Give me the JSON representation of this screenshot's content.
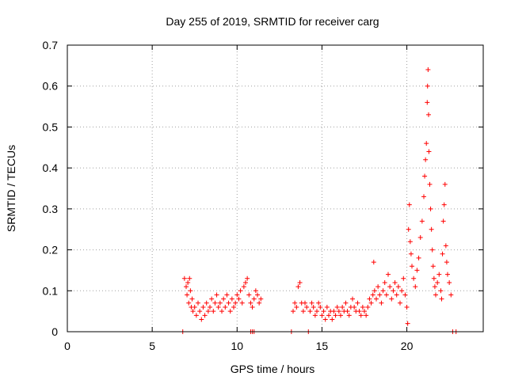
{
  "chart_data": {
    "type": "scatter",
    "title": "Day 255 of 2019, SRMTID for receiver carg",
    "xlabel": "GPS time / hours",
    "ylabel": "SRMTID / TECUs",
    "xlim": [
      0,
      24.5
    ],
    "ylim": [
      0,
      0.7
    ],
    "x_ticks": [
      0,
      5,
      10,
      15,
      20
    ],
    "x_tick_labels": [
      "0",
      "5",
      "10",
      "15",
      "20"
    ],
    "y_ticks": [
      0,
      0.1,
      0.2,
      0.3,
      0.4,
      0.5,
      0.6,
      0.7
    ],
    "y_tick_labels": [
      "0",
      "0.1",
      "0.2",
      "0.3",
      "0.4",
      "0.5",
      "0.6",
      "0.7"
    ],
    "grid": true,
    "marker": "+",
    "color": "#ff0000",
    "series": [
      {
        "name": "SRMTID",
        "points": [
          [
            6.8,
            0.0
          ],
          [
            10.8,
            0.0
          ],
          [
            10.9,
            0.0
          ],
          [
            11.0,
            0.0
          ],
          [
            13.2,
            0.0
          ],
          [
            14.2,
            0.0
          ],
          [
            22.7,
            0.0
          ],
          [
            22.9,
            0.0
          ],
          [
            6.9,
            0.13
          ],
          [
            7.0,
            0.11
          ],
          [
            7.05,
            0.09
          ],
          [
            7.1,
            0.12
          ],
          [
            7.15,
            0.07
          ],
          [
            7.2,
            0.13
          ],
          [
            7.25,
            0.1
          ],
          [
            7.3,
            0.06
          ],
          [
            7.35,
            0.08
          ],
          [
            7.4,
            0.05
          ],
          [
            7.5,
            0.06
          ],
          [
            7.6,
            0.04
          ],
          [
            7.7,
            0.07
          ],
          [
            7.8,
            0.05
          ],
          [
            7.9,
            0.03
          ],
          [
            8.0,
            0.06
          ],
          [
            8.1,
            0.04
          ],
          [
            8.2,
            0.07
          ],
          [
            8.3,
            0.05
          ],
          [
            8.4,
            0.06
          ],
          [
            8.5,
            0.08
          ],
          [
            8.6,
            0.05
          ],
          [
            8.7,
            0.07
          ],
          [
            8.8,
            0.09
          ],
          [
            8.9,
            0.06
          ],
          [
            9.0,
            0.07
          ],
          [
            9.1,
            0.05
          ],
          [
            9.2,
            0.08
          ],
          [
            9.3,
            0.06
          ],
          [
            9.4,
            0.09
          ],
          [
            9.5,
            0.07
          ],
          [
            9.6,
            0.05
          ],
          [
            9.7,
            0.08
          ],
          [
            9.8,
            0.06
          ],
          [
            9.9,
            0.07
          ],
          [
            10.0,
            0.09
          ],
          [
            10.1,
            0.08
          ],
          [
            10.2,
            0.1
          ],
          [
            10.3,
            0.07
          ],
          [
            10.4,
            0.11
          ],
          [
            10.5,
            0.12
          ],
          [
            10.6,
            0.13
          ],
          [
            10.7,
            0.09
          ],
          [
            10.8,
            0.07
          ],
          [
            10.9,
            0.06
          ],
          [
            11.0,
            0.08
          ],
          [
            11.1,
            0.1
          ],
          [
            11.2,
            0.09
          ],
          [
            11.3,
            0.07
          ],
          [
            11.4,
            0.08
          ],
          [
            13.3,
            0.05
          ],
          [
            13.4,
            0.07
          ],
          [
            13.5,
            0.06
          ],
          [
            13.6,
            0.11
          ],
          [
            13.7,
            0.12
          ],
          [
            13.8,
            0.07
          ],
          [
            13.9,
            0.05
          ],
          [
            14.0,
            0.07
          ],
          [
            14.1,
            0.06
          ],
          [
            14.3,
            0.05
          ],
          [
            14.4,
            0.07
          ],
          [
            14.5,
            0.06
          ],
          [
            14.6,
            0.04
          ],
          [
            14.7,
            0.05
          ],
          [
            14.8,
            0.07
          ],
          [
            14.9,
            0.06
          ],
          [
            15.0,
            0.04
          ],
          [
            15.1,
            0.05
          ],
          [
            15.2,
            0.03
          ],
          [
            15.3,
            0.06
          ],
          [
            15.4,
            0.04
          ],
          [
            15.5,
            0.05
          ],
          [
            15.6,
            0.03
          ],
          [
            15.7,
            0.05
          ],
          [
            15.8,
            0.04
          ],
          [
            15.9,
            0.06
          ],
          [
            16.0,
            0.05
          ],
          [
            16.1,
            0.04
          ],
          [
            16.2,
            0.06
          ],
          [
            16.3,
            0.05
          ],
          [
            16.4,
            0.07
          ],
          [
            16.5,
            0.05
          ],
          [
            16.6,
            0.04
          ],
          [
            16.7,
            0.06
          ],
          [
            16.8,
            0.08
          ],
          [
            16.9,
            0.06
          ],
          [
            17.0,
            0.05
          ],
          [
            17.1,
            0.07
          ],
          [
            17.2,
            0.05
          ],
          [
            17.3,
            0.04
          ],
          [
            17.4,
            0.06
          ],
          [
            17.5,
            0.05
          ],
          [
            17.6,
            0.04
          ],
          [
            17.7,
            0.06
          ],
          [
            17.8,
            0.08
          ],
          [
            17.9,
            0.07
          ],
          [
            18.0,
            0.09
          ],
          [
            18.05,
            0.17
          ],
          [
            18.1,
            0.1
          ],
          [
            18.2,
            0.08
          ],
          [
            18.3,
            0.11
          ],
          [
            18.4,
            0.09
          ],
          [
            18.5,
            0.07
          ],
          [
            18.6,
            0.1
          ],
          [
            18.7,
            0.12
          ],
          [
            18.8,
            0.09
          ],
          [
            18.9,
            0.14
          ],
          [
            19.0,
            0.11
          ],
          [
            19.1,
            0.08
          ],
          [
            19.2,
            0.1
          ],
          [
            19.3,
            0.12
          ],
          [
            19.4,
            0.09
          ],
          [
            19.5,
            0.11
          ],
          [
            19.6,
            0.07
          ],
          [
            19.7,
            0.1
          ],
          [
            19.8,
            0.13
          ],
          [
            19.9,
            0.09
          ],
          [
            20.0,
            0.06
          ],
          [
            20.05,
            0.02
          ],
          [
            20.1,
            0.25
          ],
          [
            20.15,
            0.31
          ],
          [
            20.2,
            0.22
          ],
          [
            20.25,
            0.19
          ],
          [
            20.3,
            0.16
          ],
          [
            20.4,
            0.13
          ],
          [
            20.5,
            0.11
          ],
          [
            20.6,
            0.15
          ],
          [
            20.7,
            0.18
          ],
          [
            20.8,
            0.23
          ],
          [
            20.9,
            0.27
          ],
          [
            21.0,
            0.33
          ],
          [
            21.05,
            0.38
          ],
          [
            21.1,
            0.42
          ],
          [
            21.15,
            0.46
          ],
          [
            21.2,
            0.56
          ],
          [
            21.22,
            0.6
          ],
          [
            21.25,
            0.64
          ],
          [
            21.28,
            0.53
          ],
          [
            21.3,
            0.44
          ],
          [
            21.35,
            0.36
          ],
          [
            21.4,
            0.3
          ],
          [
            21.45,
            0.25
          ],
          [
            21.5,
            0.2
          ],
          [
            21.55,
            0.16
          ],
          [
            21.6,
            0.13
          ],
          [
            21.65,
            0.11
          ],
          [
            21.7,
            0.09
          ],
          [
            21.8,
            0.12
          ],
          [
            21.9,
            0.14
          ],
          [
            22.0,
            0.1
          ],
          [
            22.05,
            0.08
          ],
          [
            22.1,
            0.19
          ],
          [
            22.15,
            0.27
          ],
          [
            22.2,
            0.31
          ],
          [
            22.25,
            0.36
          ],
          [
            22.3,
            0.21
          ],
          [
            22.35,
            0.17
          ],
          [
            22.4,
            0.14
          ],
          [
            22.5,
            0.12
          ],
          [
            22.6,
            0.09
          ]
        ]
      }
    ]
  }
}
